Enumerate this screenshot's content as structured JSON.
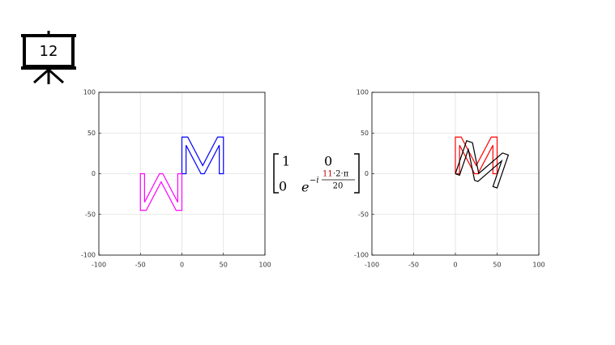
{
  "slide_number": "12",
  "matrix": {
    "r1c1": "1",
    "r1c2": "0",
    "r2c1": "0",
    "base": "e",
    "exponent_sign": "−i",
    "numerator_highlight": "11",
    "numerator_rest": "·2·π",
    "denominator": "20"
  },
  "chart_data": [
    {
      "type": "line",
      "grid": true,
      "xlim": [
        -100,
        100
      ],
      "ylim": [
        -100,
        100
      ],
      "xticks": [
        -100,
        -50,
        0,
        50,
        100
      ],
      "yticks": [
        -100,
        -50,
        0,
        50,
        100
      ],
      "series": [
        {
          "color": "#0000ff",
          "x": [
            0,
            0,
            7,
            25,
            43,
            50,
            50,
            45,
            45,
            27,
            23,
            5,
            5,
            0
          ],
          "values": [
            0,
            45,
            45,
            10,
            45,
            45,
            0,
            0,
            35,
            0,
            0,
            35,
            0,
            0
          ]
        },
        {
          "color": "#ff00ff",
          "x": [
            0,
            0,
            -7,
            -25,
            -43,
            -50,
            -50,
            -45,
            -45,
            -27,
            -23,
            -5,
            -5,
            0
          ],
          "values": [
            0,
            -45,
            -45,
            -10,
            -45,
            -45,
            0,
            0,
            -35,
            0,
            0,
            -35,
            0,
            0
          ]
        }
      ]
    },
    {
      "type": "line",
      "grid": true,
      "xlim": [
        -100,
        100
      ],
      "ylim": [
        -100,
        100
      ],
      "xticks": [
        -100,
        -50,
        0,
        50,
        100
      ],
      "yticks": [
        -100,
        -50,
        0,
        50,
        100
      ],
      "series": [
        {
          "color": "#ff0000",
          "x": [
            0,
            0,
            7,
            25,
            43,
            50,
            50,
            45,
            45,
            27,
            23,
            5,
            5,
            0
          ],
          "values": [
            0,
            45,
            45,
            10,
            45,
            45,
            0,
            0,
            35,
            0,
            0,
            35,
            0,
            0
          ]
        },
        {
          "color": "#000000",
          "x": [
            0,
            13.5,
            20.5,
            28,
            56.5,
            63.5,
            50,
            45,
            55.5,
            27,
            23,
            15.5,
            5,
            0
          ],
          "values": [
            0,
            40.5,
            38.1,
            0.3,
            25.5,
            23,
            -17.5,
            -15.8,
            15.8,
            -9.5,
            -8.1,
            29.8,
            -1.8,
            0
          ]
        }
      ]
    }
  ]
}
